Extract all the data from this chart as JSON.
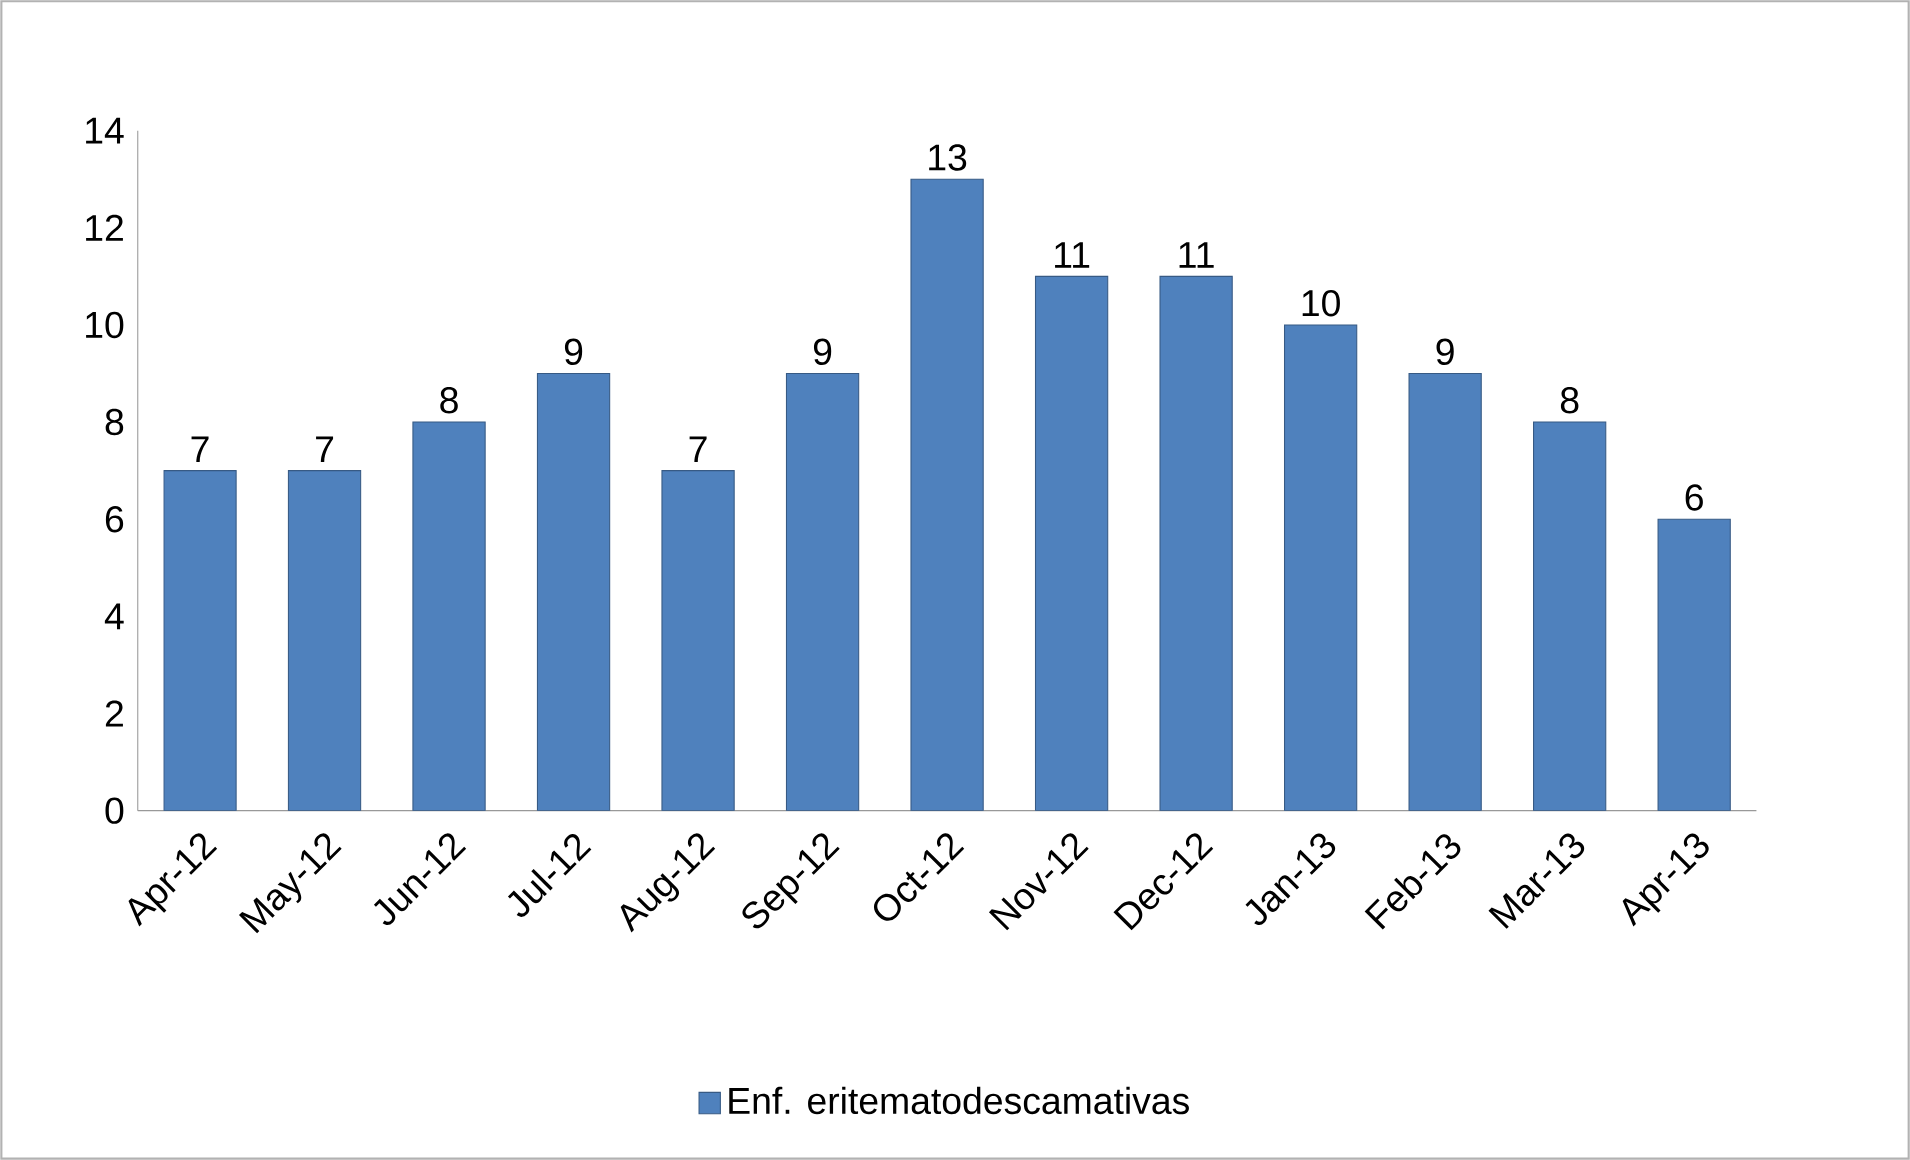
{
  "chart_data": {
    "type": "bar",
    "categories": [
      "Apr-12",
      "May-12",
      "Jun-12",
      "Jul-12",
      "Aug-12",
      "Sep-12",
      "Oct-12",
      "Nov-12",
      "Dec-12",
      "Jan-13",
      "Feb-13",
      "Mar-13",
      "Apr-13"
    ],
    "series": [
      {
        "name": "Enf. eritematodescamativas",
        "color": "#4f81bd",
        "values": [
          7,
          7,
          8,
          9,
          7,
          9,
          13,
          11,
          11,
          10,
          9,
          8,
          6
        ]
      }
    ],
    "ylim": [
      0,
      14
    ],
    "yticks": [
      0,
      2,
      4,
      6,
      8,
      10,
      12,
      14
    ],
    "data_labels": true,
    "legend": "bottom"
  }
}
